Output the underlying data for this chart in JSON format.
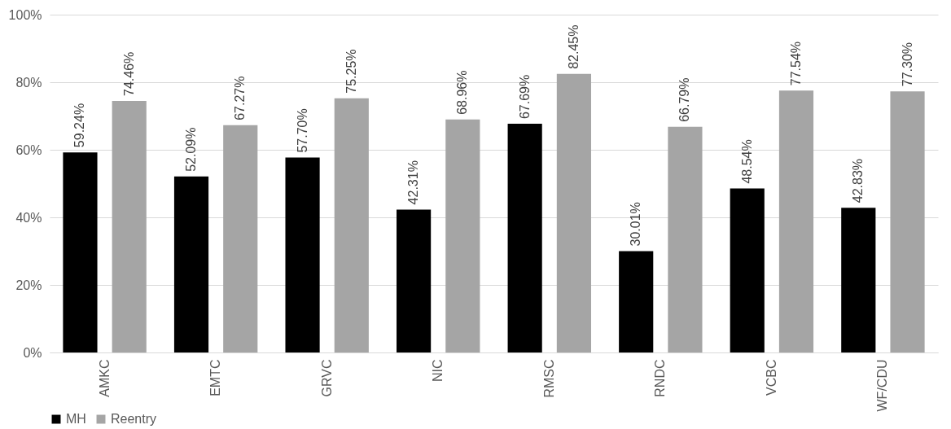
{
  "chart_data": {
    "type": "bar",
    "categories": [
      "AMKC",
      "EMTC",
      "GRVC",
      "NIC",
      "RMSC",
      "RNDC",
      "VCBC",
      "WF/CDU"
    ],
    "series": [
      {
        "name": "MH",
        "color": "#000000",
        "values": [
          59.24,
          52.09,
          57.7,
          42.31,
          67.69,
          30.01,
          48.54,
          42.83
        ],
        "value_labels": [
          "59.24%",
          "52.09%",
          "57.70%",
          "42.31%",
          "67.69%",
          "30.01%",
          "48.54%",
          "42.83%"
        ]
      },
      {
        "name": "Reentry",
        "color": "#a5a5a5",
        "values": [
          74.46,
          67.27,
          75.25,
          68.96,
          82.45,
          66.79,
          77.54,
          77.3
        ],
        "value_labels": [
          "74.46%",
          "67.27%",
          "75.25%",
          "68.96%",
          "82.45%",
          "66.79%",
          "77.54%",
          "77.30%"
        ]
      }
    ],
    "ylim": [
      0,
      100
    ],
    "yticks": [
      {
        "value": 0,
        "label": "0%"
      },
      {
        "value": 20,
        "label": "20%"
      },
      {
        "value": 40,
        "label": "40%"
      },
      {
        "value": 60,
        "label": "60%"
      },
      {
        "value": 80,
        "label": "80%"
      },
      {
        "value": 100,
        "label": "100%"
      }
    ],
    "grid": "y",
    "legend": "bottom"
  }
}
